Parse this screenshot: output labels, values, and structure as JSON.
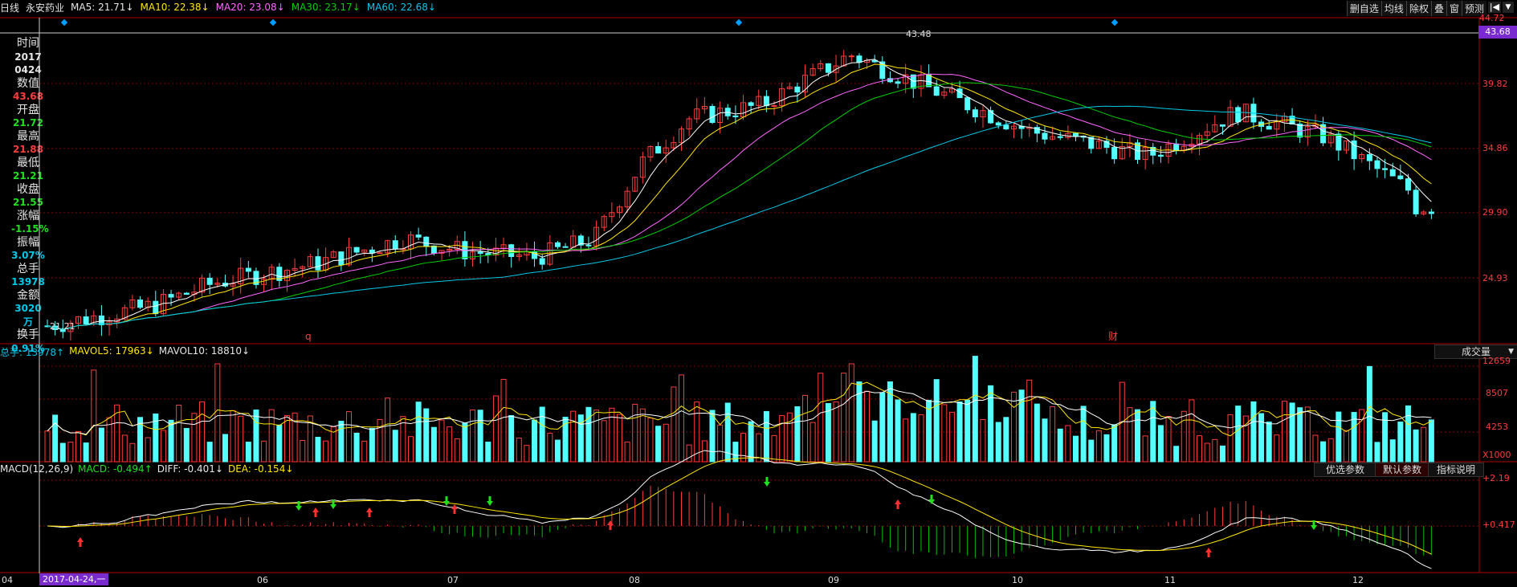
{
  "header": {
    "period": "日线",
    "stock_name": "永安药业",
    "ma5": "MA5: 21.71↓",
    "ma10": "MA10: 22.38↓",
    "ma20": "MA20: 23.08↓",
    "ma30": "MA30: 23.17↓",
    "ma60": "MA60: 22.68↓"
  },
  "toolbar": [
    "删自选",
    "均线",
    "除权",
    "叠",
    "窗",
    "预测"
  ],
  "price_axis": [
    "44.72",
    "39.82",
    "34.86",
    "29.90",
    "24.93"
  ],
  "current_price_tag": "43.68",
  "high_label": "43.48",
  "low_label": "21.21",
  "event_markers": [
    "q",
    "财"
  ],
  "infobox": {
    "time_label": "时间",
    "year": "2017",
    "date": "0424",
    "value_label": "数值",
    "value": "43.68",
    "open_label": "开盘",
    "open": "21.72",
    "high_label": "最高",
    "high": "21.88",
    "low_label": "最低",
    "low": "21.21",
    "close_label": "收盘",
    "close": "21.55",
    "change_label": "涨幅",
    "change": "-1.15%",
    "amplitude_label": "振幅",
    "amplitude": "3.07%",
    "volume_label": "总手",
    "volume": "13978",
    "amount_label": "金额",
    "amount": "3020万",
    "turnover_label": "换手",
    "turnover": "0.91%"
  },
  "volume_panel": {
    "total": "总手: 13978↑",
    "mavol5": "MAVOL5: 17963↓",
    "mavol10": "MAVOL10: 18810↓",
    "dropdown": "成交量",
    "axis": [
      "12659",
      "8507",
      "4253"
    ],
    "unit": "X1000"
  },
  "macd_panel": {
    "params": "MACD(12,26,9)",
    "macd": "MACD: -0.494↑",
    "diff": "DIFF: -0.401↓",
    "dea": "DEA: -0.154↓",
    "buttons": [
      "优选参数",
      "默认参数",
      "指标说明"
    ],
    "axis": [
      "+2.19",
      "+0.417"
    ]
  },
  "time_axis": [
    "04",
    "06",
    "07",
    "08",
    "09",
    "10",
    "11",
    "12"
  ],
  "cursor_date": "2017-04-24,一",
  "colors": {
    "up": "#ff3c3c",
    "down": "#54ffff",
    "ma5": "#ffffff",
    "ma10": "#ffe600",
    "ma20": "#ff66ff",
    "ma30": "#00d000",
    "ma60": "#00c8e8"
  },
  "chart_data": {
    "type": "line",
    "title": "",
    "ylim": [
      21.21,
      44.72
    ],
    "x": [
      "2017-04-24",
      "2017-06",
      "2017-07",
      "2017-08",
      "2017-09",
      "2017-10",
      "2017-11",
      "2017-12"
    ],
    "series": [
      {
        "name": "MA5",
        "values": [
          21.7,
          23.5,
          25.2,
          33.5,
          40.5,
          38.0,
          34.0,
          31.5
        ]
      },
      {
        "name": "MA10",
        "values": [
          22.4,
          23.2,
          24.8,
          32.5,
          39.5,
          38.5,
          35.0,
          32.5
        ]
      },
      {
        "name": "MA20",
        "values": [
          23.1,
          22.8,
          24.2,
          31.0,
          38.0,
          39.0,
          36.5,
          34.0
        ]
      },
      {
        "name": "MA30",
        "values": [
          23.2,
          22.5,
          23.8,
          29.5,
          36.5,
          39.0,
          37.5,
          35.5
        ]
      },
      {
        "name": "MA60",
        "values": [
          22.7,
          22.3,
          23.0,
          27.0,
          33.0,
          37.0,
          37.8,
          37.0
        ]
      }
    ]
  }
}
